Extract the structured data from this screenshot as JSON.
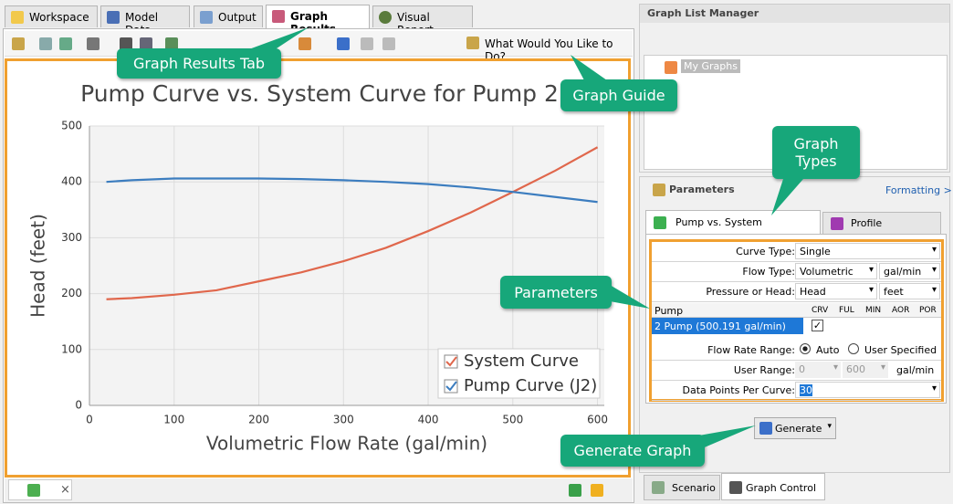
{
  "tabs": [
    "Workspace",
    "Model Data",
    "Output",
    "Graph Results",
    "Visual Report"
  ],
  "toolbar": {
    "help": "What Would You Like to Do?"
  },
  "chart_data": {
    "type": "line",
    "title": "Pump Curve vs. System Curve for Pump 2",
    "xlabel": "Volumetric Flow Rate (gal/min)",
    "ylabel": "Head (feet)",
    "x": [
      20,
      50,
      100,
      150,
      200,
      250,
      300,
      350,
      400,
      450,
      500,
      550,
      600
    ],
    "series": [
      {
        "name": "System Curve",
        "color": "#e0674c",
        "values": [
          190,
          192,
          198,
          206,
          222,
          238,
          258,
          282,
          312,
          345,
          382,
          420,
          462
        ]
      },
      {
        "name": "Pump Curve (J2)",
        "color": "#3c7dbf",
        "values": [
          400,
          403,
          406,
          406,
          406,
          405,
          403,
          400,
          396,
          390,
          382,
          373,
          364
        ]
      }
    ],
    "xlim": [
      0,
      608
    ],
    "ylim": [
      0,
      500
    ],
    "xticks": [
      0,
      100,
      200,
      300,
      400,
      500,
      600
    ],
    "yticks": [
      0,
      100,
      200,
      300,
      400,
      500
    ],
    "grid": true,
    "legend": "lower right"
  },
  "callouts": {
    "graph_results_tab": "Graph Results Tab",
    "graph_guide": "Graph Guide",
    "graph_types": "Graph Types",
    "parameters": "Parameters",
    "generate_graph": "Generate Graph"
  },
  "graph_list_manager": {
    "title": "Graph List Manager",
    "tree": [
      "My Graphs"
    ]
  },
  "parameters": {
    "title": "Parameters",
    "formatting": "Formatting >",
    "tabs": [
      "Pump vs. System",
      "Profile"
    ],
    "curve_type": {
      "label": "Curve Type:",
      "value": "Single"
    },
    "flow_type": {
      "label": "Flow Type:",
      "value": "Volumetric",
      "unit": "gal/min"
    },
    "pressure_or_head": {
      "label": "Pressure or Head:",
      "value": "Head",
      "unit": "feet"
    },
    "pump_table": {
      "columns": [
        "Pump",
        "CRV",
        "FUL",
        "MIN",
        "AOR",
        "POR"
      ],
      "rows": [
        "2  Pump  (500.191 gal/min)"
      ]
    },
    "flow_rate_range": {
      "label": "Flow Rate Range:",
      "options": [
        "Auto",
        "User Specified"
      ]
    },
    "user_range": {
      "label": "User Range:",
      "from": "0",
      "to": "600",
      "unit": "gal/min"
    },
    "data_points": {
      "label": "Data Points Per Curve:",
      "value": "30"
    }
  },
  "generate": "Generate",
  "bottom_tabs": [
    "Scenario",
    "Graph Control"
  ]
}
